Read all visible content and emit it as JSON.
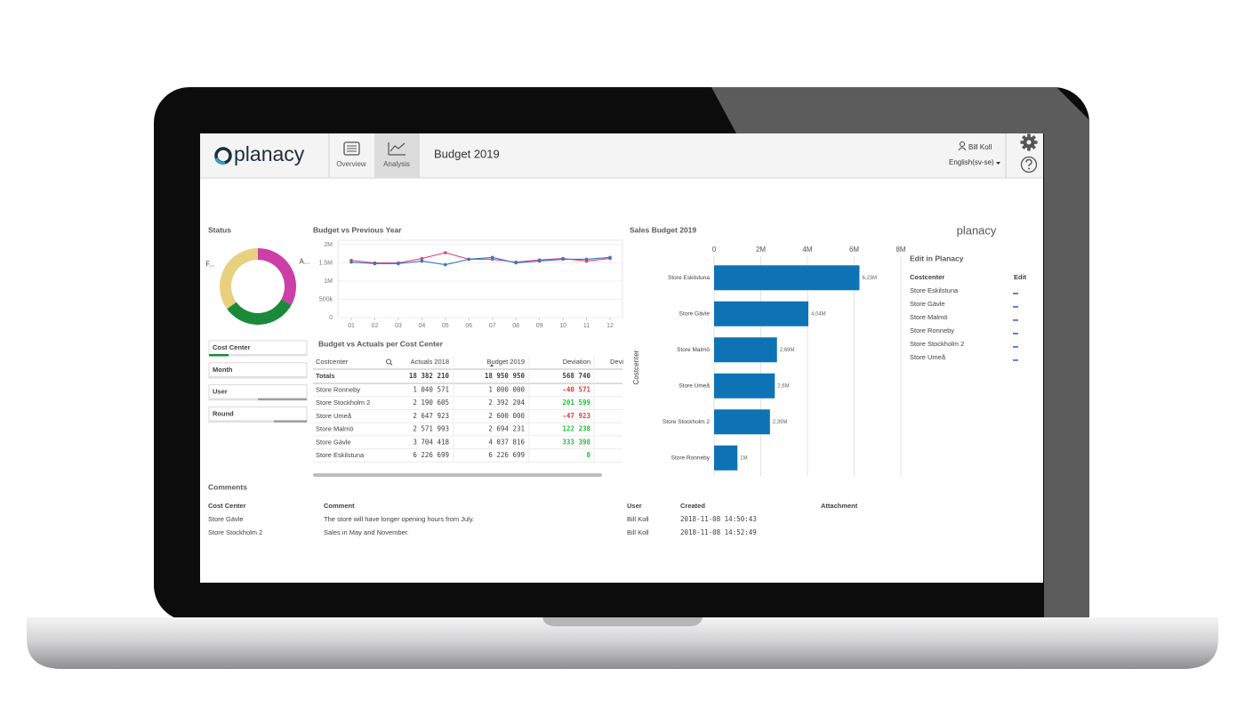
{
  "header": {
    "logo": "planacy",
    "nav": [
      "Overview",
      "Analysis"
    ],
    "title": "Budget 2019",
    "user": "Bill Koll",
    "language": "English(sv-se)"
  },
  "chart_data": [
    {
      "type": "donut",
      "title": "Status",
      "categories": [
        "A...",
        null,
        "F..."
      ],
      "values": [
        33,
        32,
        35
      ],
      "colors": [
        "#cc3fa6",
        "#1a8a3a",
        "#e8d07e"
      ]
    },
    {
      "type": "line",
      "title": "Budget vs Previous Year",
      "categories": [
        "01",
        "02",
        "03",
        "04",
        "05",
        "06",
        "07",
        "08",
        "09",
        "10",
        "11",
        "12"
      ],
      "series": [
        {
          "color": "#e4407a",
          "values": [
            1570000,
            1500000,
            1500000,
            1620000,
            1780000,
            1600000,
            1600000,
            1520000,
            1580000,
            1620000,
            1550000,
            1620000
          ]
        },
        {
          "color": "#2f7bbf",
          "values": [
            1520000,
            1480000,
            1480000,
            1550000,
            1450000,
            1600000,
            1650000,
            1500000,
            1550000,
            1600000,
            1600000,
            1650000
          ]
        }
      ],
      "ylim": [
        0,
        2000000
      ],
      "yticks": [
        0,
        {
          "value": 500000,
          "label": "500k"
        },
        {
          "value": 1000000,
          "label": "1M"
        },
        {
          "value": 1500000,
          "label": "1.5M"
        },
        {
          "value": 2000000,
          "label": "2M"
        }
      ],
      "grid": true
    },
    {
      "type": "bar",
      "orientation": "horizontal",
      "title": "Sales Budget 2019",
      "y_label": "Costcenter",
      "categories": [
        "Store Eskilstuna",
        "Store Gävle",
        "Store Malmö",
        "Store Umeå",
        "Store Stockholm 2",
        "Store Ronneby"
      ],
      "values": [
        6226699,
        4037816,
        2694231,
        2600000,
        2392204,
        1000000
      ],
      "value_labels": [
        "6,23M",
        "4,04M",
        "2,69M",
        "2,6M",
        "2,39M",
        "1M"
      ],
      "color": "#0e73b5",
      "xlim": [
        0,
        8000000
      ],
      "xticks": [
        0,
        {
          "value": 2000000,
          "label": "2M"
        },
        {
          "value": 4000000,
          "label": "4M"
        },
        {
          "value": 6000000,
          "label": "6M"
        },
        {
          "value": 8000000,
          "label": "8M"
        }
      ],
      "grid": true
    }
  ],
  "filters": [
    "Cost Center",
    "Month",
    "User",
    "Round"
  ],
  "table": {
    "title": "Budget vs Actuals per Cost Center",
    "columns": [
      "Costcenter",
      "Actuals 2018",
      "Budget 2019",
      "Deviation",
      "Devi"
    ],
    "totals": [
      "Totals",
      "18 382 210",
      "18 950 950",
      "568 740"
    ],
    "rows": [
      [
        "Store Ronneby",
        "1 040 571",
        "1 000 000",
        "-40 571"
      ],
      [
        "Store Stockholm 2",
        "2 190 605",
        "2 392 204",
        "201 599"
      ],
      [
        "Store Umeå",
        "2 647 923",
        "2 600 000",
        "-47 923"
      ],
      [
        "Store Malmö",
        "2 571 993",
        "2 694 231",
        "122 238"
      ],
      [
        "Store Gävle",
        "3 704 418",
        "4 037 816",
        "333 398"
      ],
      [
        "Store Eskilstuna",
        "6 226 699",
        "6 226 699",
        "0"
      ]
    ]
  },
  "comments": {
    "title": "Comments",
    "columns": [
      "Cost Center",
      "Comment",
      "User",
      "Created",
      "Attachment"
    ],
    "rows": [
      [
        "Store Gävle",
        "The store will have longer opening hours from July.",
        "Bill Koll",
        "2018-11-08 14:50:43"
      ],
      [
        "Store Stockholm 2",
        "Sales in May and November.",
        "Bill Koll",
        "2018-11-08 14:52:49"
      ]
    ]
  },
  "edit_panel": {
    "logo": "planacy",
    "title": "Edit in Planacy",
    "columns": [
      "Costcenter",
      "Edit"
    ],
    "rows": [
      "Store Eskilstuna",
      "Store Gävle",
      "Store Malmö",
      "Store Ronneby",
      "Store Stockholm 2",
      "Store Umeå"
    ]
  }
}
